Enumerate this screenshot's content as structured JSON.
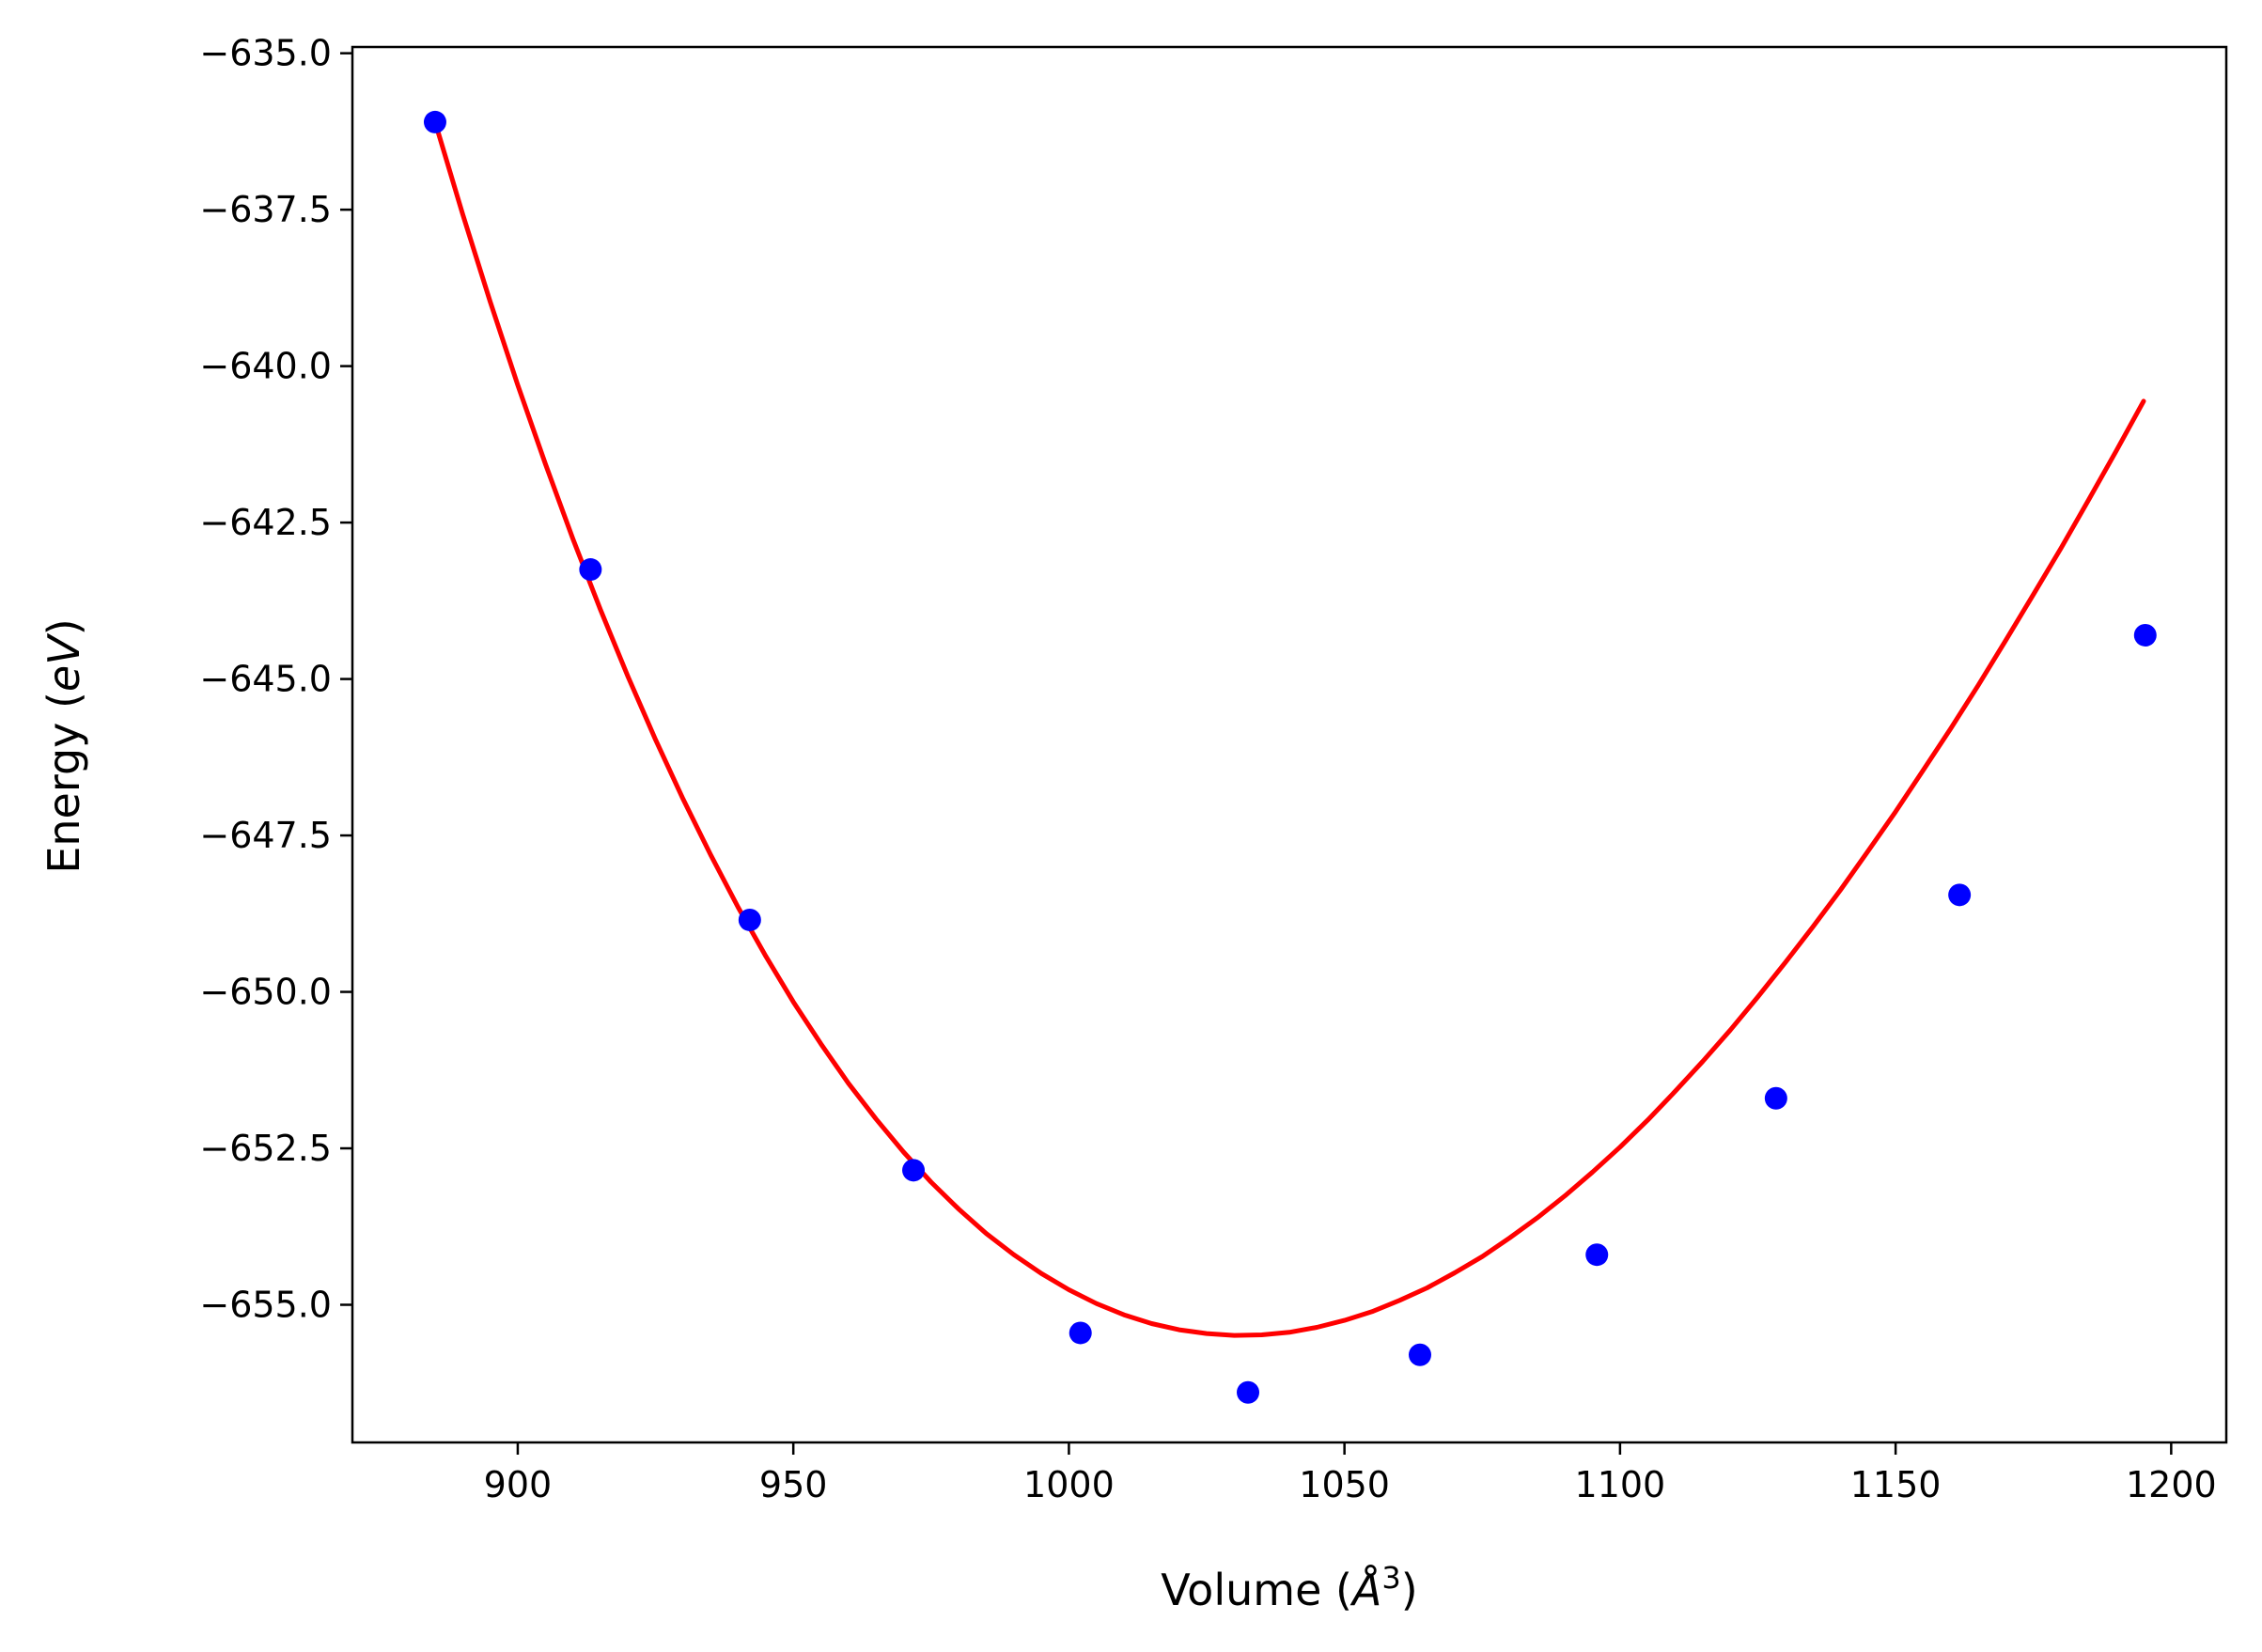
{
  "chart_data": {
    "type": "scatter",
    "title": "",
    "xlabel": "Volume (",
    "xlabel_symbol": "Å",
    "xlabel_sup": "3",
    "xlabel_close": ")",
    "ylabel": "Energy (",
    "ylabel_symbol": "eV",
    "ylabel_close": ")",
    "xlim": [
      870,
      1210
    ],
    "ylim": [
      -657.2,
      -634.9
    ],
    "x_ticks": [
      900,
      950,
      1000,
      1050,
      1100,
      1150,
      1200
    ],
    "x_tick_labels": [
      "900",
      "950",
      "1000",
      "1050",
      "1100",
      "1150",
      "1200"
    ],
    "y_ticks": [
      -635.0,
      -637.5,
      -640.0,
      -642.5,
      -645.0,
      -647.5,
      -650.0,
      -652.5,
      -655.0
    ],
    "y_tick_labels": [
      "−635.0",
      "−637.5",
      "−640.0",
      "−642.5",
      "−645.0",
      "−647.5",
      "−650.0",
      "−652.5",
      "−655.0"
    ],
    "grid": false,
    "series": [
      {
        "kind": "points",
        "color": "#0000ff",
        "x": [
          885.0,
          913.2,
          942.1,
          971.8,
          1002.1,
          1032.5,
          1063.7,
          1095.8,
          1128.3,
          1161.6,
          1195.3
        ],
        "y": [
          -636.1,
          -643.25,
          -648.85,
          -652.85,
          -655.45,
          -656.4,
          -655.8,
          -654.2,
          -651.7,
          -648.45,
          -644.3
        ]
      },
      {
        "kind": "fit-curve",
        "color": "#ff0000",
        "x": [
          885,
          890,
          895,
          900,
          905,
          910,
          915,
          920,
          925,
          930,
          935,
          940,
          945,
          950,
          955,
          960,
          965,
          970,
          975,
          980,
          985,
          990,
          995,
          1000,
          1005,
          1010,
          1015,
          1020,
          1025,
          1030,
          1035,
          1040,
          1045,
          1050,
          1055,
          1060,
          1065,
          1070,
          1075,
          1080,
          1085,
          1090,
          1095,
          1100,
          1105,
          1110,
          1115,
          1120,
          1125,
          1130,
          1135,
          1140,
          1145,
          1150,
          1155,
          1160,
          1165,
          1170,
          1175,
          1180,
          1185,
          1190,
          1195
        ],
        "y": [
          -636.1,
          -637.57,
          -638.97,
          -640.3,
          -641.56,
          -642.76,
          -643.89,
          -644.96,
          -645.97,
          -646.92,
          -647.81,
          -648.65,
          -649.43,
          -650.16,
          -650.83,
          -651.46,
          -652.03,
          -652.56,
          -653.04,
          -653.47,
          -653.86,
          -654.2,
          -654.5,
          -654.76,
          -654.98,
          -655.16,
          -655.3,
          -655.4,
          -655.46,
          -655.49,
          -655.48,
          -655.44,
          -655.36,
          -655.25,
          -655.11,
          -654.93,
          -654.73,
          -654.49,
          -654.23,
          -653.93,
          -653.61,
          -653.26,
          -652.88,
          -652.48,
          -652.05,
          -651.59,
          -651.11,
          -650.61,
          -650.08,
          -649.53,
          -648.96,
          -648.37,
          -647.75,
          -647.12,
          -646.46,
          -645.79,
          -645.1,
          -644.38,
          -643.65,
          -642.91,
          -642.14,
          -641.36,
          -640.56
        ]
      }
    ]
  }
}
